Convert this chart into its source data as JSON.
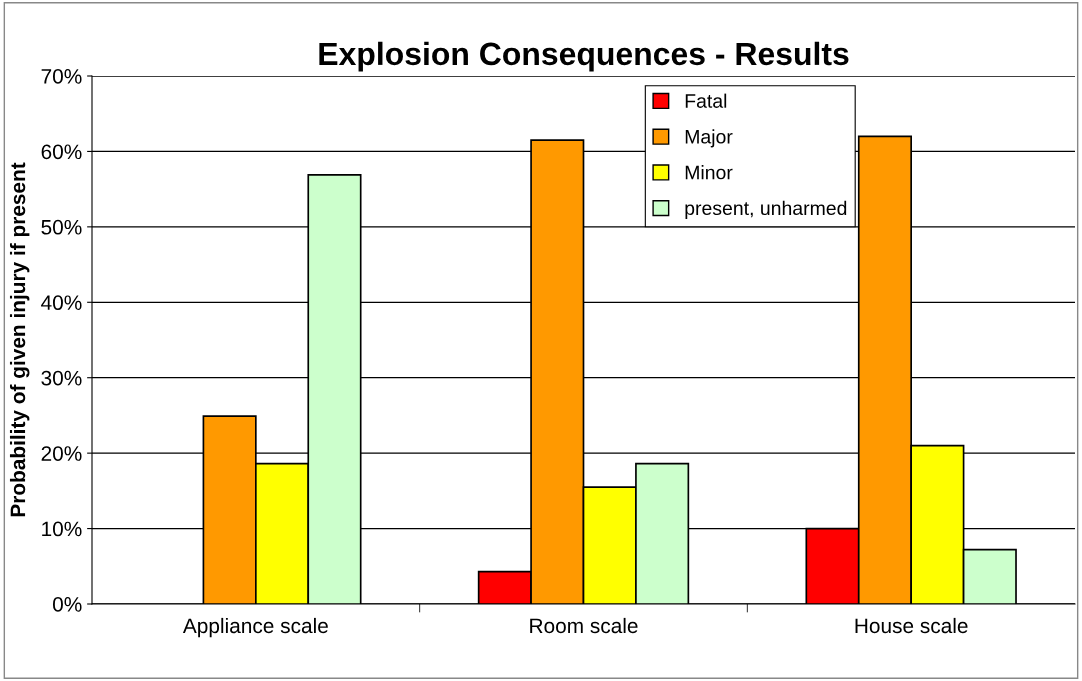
{
  "chart_data": {
    "type": "bar",
    "title": "Explosion Consequences - Results",
    "ylabel": "Probability of given injury if present",
    "categories": [
      "Appliance scale",
      "Room scale",
      "House scale"
    ],
    "series": [
      {
        "name": "Fatal",
        "color": "#ff0000",
        "values": [
          null,
          4.3,
          10.0
        ]
      },
      {
        "name": "Major",
        "color": "#ff9900",
        "values": [
          24.9,
          61.5,
          62.0
        ]
      },
      {
        "name": "Minor",
        "color": "#ffff00",
        "values": [
          18.6,
          15.5,
          21.0
        ]
      },
      {
        "name": "present, unharmed",
        "color": "#ccffcc",
        "values": [
          56.9,
          18.6,
          7.2
        ]
      }
    ],
    "ylim": [
      0,
      70
    ],
    "yticks": [
      {
        "value": 0,
        "label": "0%"
      },
      {
        "value": 10,
        "label": "10%"
      },
      {
        "value": 20,
        "label": "20%"
      },
      {
        "value": 30,
        "label": "30%"
      },
      {
        "value": 40,
        "label": "40%"
      },
      {
        "value": 50,
        "label": "50%"
      },
      {
        "value": 60,
        "label": "60%"
      },
      {
        "value": 70,
        "label": "70%"
      }
    ],
    "grid": "y",
    "legend": "top"
  }
}
